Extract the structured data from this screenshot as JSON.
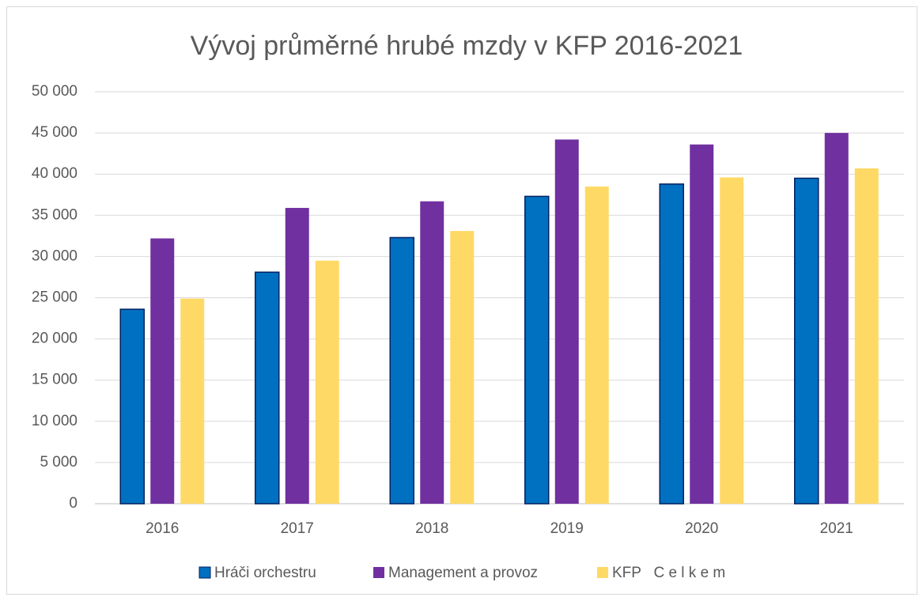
{
  "chart_data": {
    "type": "bar",
    "title": "Vývoj průměrné hrubé mzdy v KFP 2016-2021",
    "categories": [
      "2016",
      "2017",
      "2018",
      "2019",
      "2020",
      "2021"
    ],
    "series": [
      {
        "name": "Hráči orchestru",
        "color": "#0070c0",
        "values": [
          23600,
          28100,
          32300,
          37300,
          38800,
          39500
        ]
      },
      {
        "name": "Management a provoz",
        "color": "#7030a0",
        "values": [
          32200,
          35900,
          36700,
          44200,
          43600,
          45000
        ]
      },
      {
        "name": "KFP   C e l k e m",
        "color": "#ffd966",
        "values": [
          24900,
          29500,
          33100,
          38500,
          39600,
          40700
        ]
      }
    ],
    "ylim": [
      0,
      50000
    ],
    "yticks": [
      0,
      {
        "value": 5000,
        "label": "5 000"
      },
      {
        "value": 10000,
        "label": "10 000"
      },
      {
        "value": 15000,
        "label": "15 000"
      },
      {
        "value": 20000,
        "label": "20 000"
      },
      {
        "value": 25000,
        "label": "25 000"
      },
      {
        "value": 30000,
        "label": "30 000"
      },
      {
        "value": 35000,
        "label": "35 000"
      },
      {
        "value": 40000,
        "label": "40 000"
      },
      {
        "value": 45000,
        "label": "45 000"
      },
      {
        "value": 50000,
        "label": "50 000"
      }
    ],
    "grid": true,
    "legend": "bottom"
  }
}
